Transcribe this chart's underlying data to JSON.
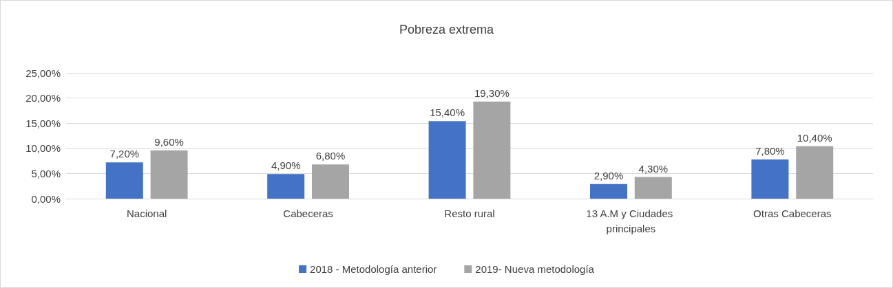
{
  "chart_data": {
    "type": "bar",
    "title": "Pobreza extrema",
    "categories": [
      "Nacional",
      "Cabeceras",
      "Resto rural",
      "13 A.M y Ciudades principales",
      "Otras Cabeceras"
    ],
    "series": [
      {
        "name": "2018 - Metodología anterior",
        "color": "#4472c4",
        "values": [
          7.2,
          4.9,
          15.4,
          2.9,
          7.8
        ],
        "value_labels": [
          "7,20%",
          "4,90%",
          "15,40%",
          "2,90%",
          "7,80%"
        ]
      },
      {
        "name": "2019- Nueva metodología",
        "color": "#a5a5a5",
        "values": [
          9.6,
          6.8,
          19.3,
          4.3,
          10.4
        ],
        "value_labels": [
          "9,60%",
          "6,80%",
          "19,30%",
          "4,30%",
          "10,40%"
        ]
      }
    ],
    "ylim": [
      0,
      25
    ],
    "yticks": [
      {
        "value": 0,
        "label": "0,00%"
      },
      {
        "value": 5,
        "label": "5,00%"
      },
      {
        "value": 10,
        "label": "10,00%"
      },
      {
        "value": 15,
        "label": "15,00%"
      },
      {
        "value": 20,
        "label": "20,00%"
      },
      {
        "value": 25,
        "label": "25,00%"
      }
    ],
    "grid": "y",
    "legend": "bottom"
  }
}
